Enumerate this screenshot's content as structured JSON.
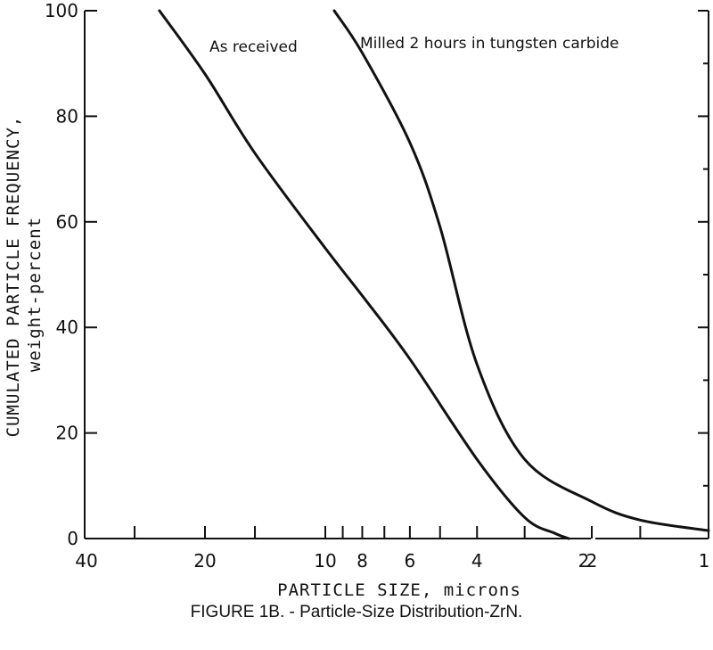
{
  "chart_data": {
    "type": "line",
    "title": "",
    "xlabel": "PARTICLE SIZE, microns",
    "ylabel": "CUMULATED PARTICLE FREQUENCY,",
    "ylabel_sub": "weight-percent",
    "x_scale": "log-reversed",
    "x_break_between": [
      10,
      2
    ],
    "ylim": [
      0,
      100
    ],
    "y_ticks": [
      0,
      20,
      40,
      60,
      80,
      100
    ],
    "x_tick_labels": [
      "40",
      "20",
      "10",
      "8",
      "6",
      "4",
      "2",
      "2",
      "1"
    ],
    "grid": false,
    "series": [
      {
        "name": "As received",
        "points": [
          {
            "x": 26,
            "y": 100
          },
          {
            "x": 20,
            "y": 88
          },
          {
            "x": 15,
            "y": 73
          },
          {
            "x": 10,
            "y": 55
          },
          {
            "x": 8,
            "y": 46
          },
          {
            "x": 6,
            "y": 34
          },
          {
            "x": 4,
            "y": 15
          },
          {
            "x": 3,
            "y": 4
          },
          {
            "x": 2.5,
            "y": 1
          },
          {
            "x": 2.3,
            "y": 0
          }
        ]
      },
      {
        "name": "Milled 2 hours in tungsten carbide",
        "points": [
          {
            "x": 9.5,
            "y": 100
          },
          {
            "x": 8,
            "y": 92
          },
          {
            "x": 6,
            "y": 75
          },
          {
            "x": 5,
            "y": 59
          },
          {
            "x": 4,
            "y": 33
          },
          {
            "x": 3,
            "y": 15
          },
          {
            "x": 2,
            "y": 7
          },
          {
            "x": 1.5,
            "y": 3.5
          },
          {
            "x": 1,
            "y": 1.5
          }
        ]
      }
    ]
  },
  "caption": "FIGURE 1B. - Particle-Size Distribution-ZrN."
}
